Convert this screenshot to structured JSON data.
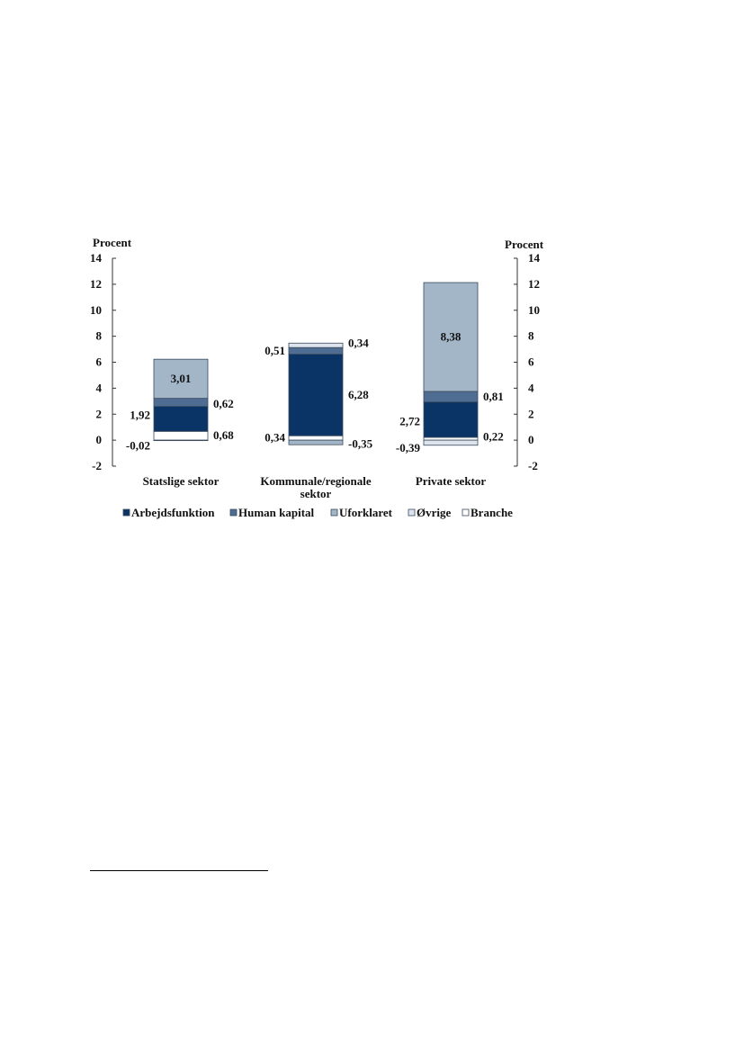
{
  "chart_data": {
    "type": "bar",
    "stacked": true,
    "ylabel_left": "Procent",
    "ylabel_right": "Procent",
    "ylim": [
      -2,
      14
    ],
    "yticks": [
      -2,
      0,
      2,
      4,
      6,
      8,
      10,
      12,
      14
    ],
    "categories": [
      "Statslige sektor",
      "Kommunale/regionale sektor",
      "Private sektor"
    ],
    "category_label_lines": [
      [
        "Statslige sektor"
      ],
      [
        "Kommunale/regionale",
        "sektor"
      ],
      [
        "Private sektor"
      ]
    ],
    "series": [
      {
        "name": "Branche",
        "color": "#ffffff",
        "values": [
          0.68,
          0.34,
          0.22
        ],
        "labels": [
          "0,68",
          "0,34",
          "0,22"
        ]
      },
      {
        "name": "Arbejdsfunktion",
        "color": "#0b3466",
        "values": [
          1.92,
          6.28,
          2.72
        ],
        "labels": [
          "1,92",
          "6,28",
          "2,72"
        ]
      },
      {
        "name": "Human kapital",
        "color": "#4f6d92",
        "values": [
          0.62,
          0.51,
          0.81
        ],
        "labels": [
          "0,62",
          "0,51",
          "0,81"
        ]
      },
      {
        "name": "Uforklaret",
        "color": "#a3b6c8",
        "values": [
          3.01,
          -0.35,
          8.38
        ],
        "labels": [
          "3,01",
          "-0,35",
          "8,38"
        ]
      },
      {
        "name": "Øvrige",
        "color": "#dde4ee",
        "values": [
          -0.02,
          0.34,
          -0.39
        ],
        "labels": [
          "-0,02",
          "0,34",
          "-0,39"
        ]
      }
    ],
    "legend_order": [
      "Arbejdsfunktion",
      "Human kapital",
      "Uforklaret",
      "Øvrige",
      "Branche"
    ],
    "legend_position": "bottom",
    "grid": false
  }
}
